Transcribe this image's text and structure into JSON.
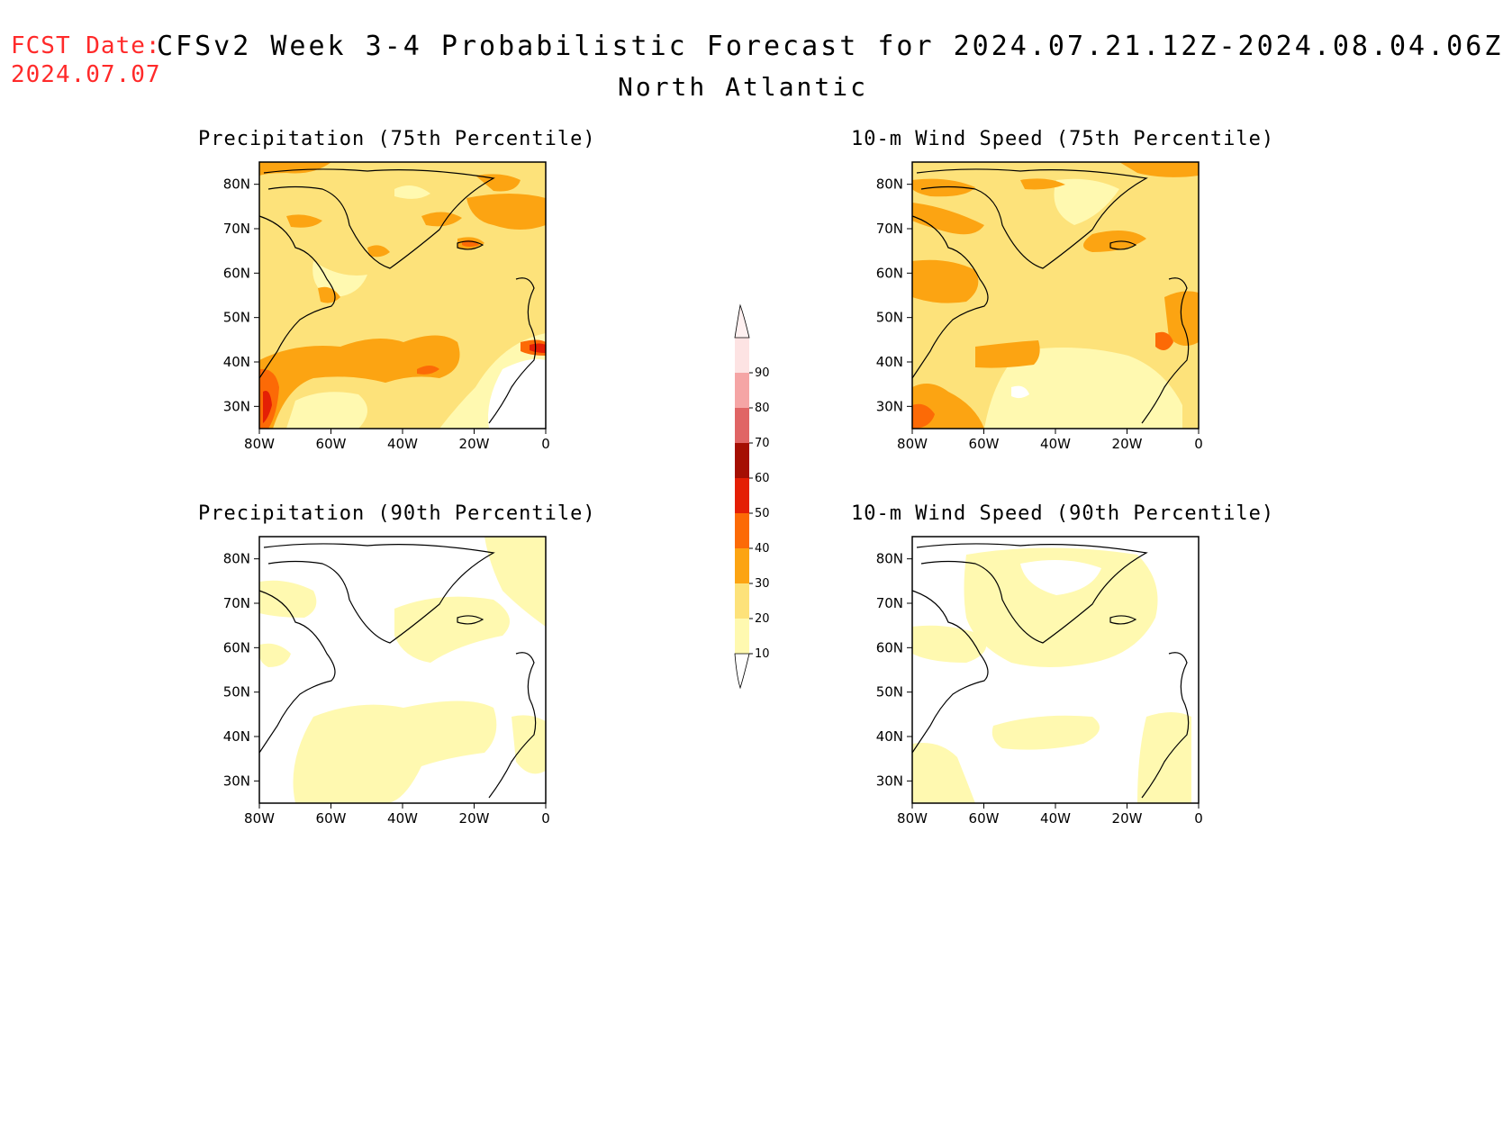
{
  "header": {
    "fcst_label": "FCST Date:",
    "fcst_date": "2024.07.07",
    "title": "CFSv2 Week 3-4 Probabilistic Forecast for 2024.07.21.12Z-2024.08.04.06Z",
    "region": "North Atlantic"
  },
  "panels": [
    {
      "title": "Precipitation (75th Percentile)"
    },
    {
      "title": "10-m Wind Speed (75th Percentile)"
    },
    {
      "title": "Precipitation (90th Percentile)"
    },
    {
      "title": "10-m Wind Speed (90th Percentile)"
    }
  ],
  "axes": {
    "lat_labels": [
      "80N",
      "70N",
      "60N",
      "50N",
      "40N",
      "30N"
    ],
    "lat_values": [
      80,
      70,
      60,
      50,
      40,
      30
    ],
    "lon_labels": [
      "80W",
      "60W",
      "40W",
      "20W",
      "0"
    ],
    "lon_values": [
      -80,
      -60,
      -40,
      -20,
      0
    ],
    "lat_range": [
      25,
      85
    ],
    "lon_range": [
      -80,
      0
    ]
  },
  "colorbar": {
    "levels": [
      "10",
      "20",
      "30",
      "40",
      "50",
      "60",
      "70",
      "80",
      "90"
    ],
    "colors": [
      "#fff9b0",
      "#fde27a",
      "#fca412",
      "#fc6a06",
      "#e41f05",
      "#a50f03",
      "#e06565",
      "#f5a5a5",
      "#fde3e3"
    ]
  },
  "fill_colors": {
    "c10_20": "#fff9b0",
    "c20_30": "#fde27a",
    "c30_40": "#fca412",
    "c40_50": "#fc6a06",
    "c50_60": "#e41f05"
  }
}
